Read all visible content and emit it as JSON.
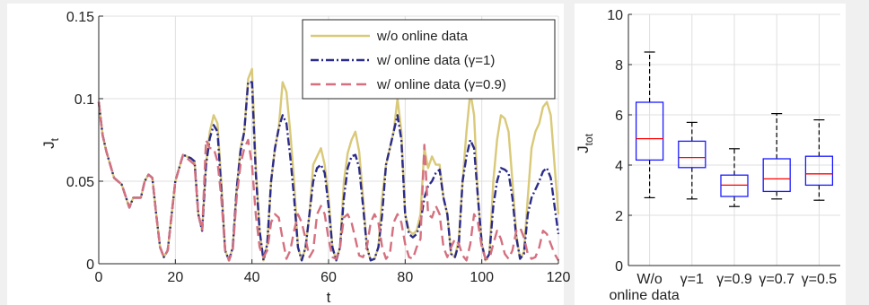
{
  "colors": {
    "background": "#f0f0f0",
    "panel": "#ffffff",
    "grid": "#dfdfdf",
    "axis": "#262626",
    "box": "#1a1aff",
    "median": "#ff0000"
  },
  "chart_data": [
    {
      "type": "line",
      "xlabel": "t",
      "ylabel": "J",
      "ylabel_sub": "t",
      "xlim": [
        0,
        120
      ],
      "ylim": [
        0,
        0.15
      ],
      "xticks": [
        0,
        20,
        40,
        60,
        80,
        100,
        120
      ],
      "yticks": [
        0,
        0.05,
        0.1,
        0.15
      ],
      "ytick_labels": [
        "0",
        "0.05",
        "0.1",
        "0.15"
      ],
      "grid": true,
      "legend_position": "top-right",
      "series": [
        {
          "name": "w/o online data",
          "color": "#d9c979",
          "dash": "solid",
          "x": [
            0,
            1,
            2,
            4,
            6,
            8,
            9,
            11,
            12,
            13,
            14,
            15,
            16,
            17,
            18,
            20,
            22,
            24,
            25,
            26,
            27,
            28,
            29,
            30,
            31,
            32,
            33,
            34,
            35,
            36,
            37,
            38,
            39,
            40,
            41,
            42,
            43,
            44,
            45,
            46,
            47,
            48,
            49,
            50,
            51,
            52,
            53,
            54,
            55,
            56,
            57,
            58,
            59,
            60,
            61,
            62,
            63,
            64,
            65,
            66,
            67,
            68,
            69,
            70,
            71,
            72,
            73,
            74,
            75,
            76,
            77,
            78,
            79,
            80,
            81,
            82,
            83,
            84,
            85,
            86,
            87,
            88,
            89,
            90,
            91,
            92,
            93,
            94,
            95,
            96,
            97,
            98,
            99,
            100,
            101,
            102,
            103,
            104,
            105,
            106,
            107,
            108,
            109,
            110,
            111,
            112,
            113,
            114,
            115,
            116,
            117,
            118,
            119,
            120
          ],
          "y": [
            0.098,
            0.078,
            0.068,
            0.052,
            0.048,
            0.034,
            0.04,
            0.04,
            0.05,
            0.054,
            0.052,
            0.03,
            0.01,
            0.004,
            0.008,
            0.05,
            0.066,
            0.064,
            0.062,
            0.03,
            0.02,
            0.06,
            0.08,
            0.09,
            0.085,
            0.05,
            0.008,
            0.002,
            0.01,
            0.045,
            0.07,
            0.08,
            0.112,
            0.118,
            0.06,
            0.02,
            0.002,
            0.012,
            0.05,
            0.07,
            0.082,
            0.11,
            0.104,
            0.08,
            0.05,
            0.01,
            0.002,
            0.01,
            0.03,
            0.06,
            0.065,
            0.07,
            0.06,
            0.04,
            0.01,
            0.002,
            0.01,
            0.05,
            0.067,
            0.075,
            0.08,
            0.068,
            0.04,
            0.01,
            0.002,
            0.003,
            0.01,
            0.04,
            0.06,
            0.07,
            0.08,
            0.1,
            0.08,
            0.03,
            0.02,
            0.018,
            0.02,
            0.03,
            0.07,
            0.058,
            0.065,
            0.06,
            0.06,
            0.04,
            0.03,
            0.006,
            0.004,
            0.015,
            0.05,
            0.08,
            0.104,
            0.09,
            0.04,
            0.012,
            0.002,
            0.006,
            0.05,
            0.075,
            0.09,
            0.088,
            0.08,
            0.05,
            0.018,
            0.003,
            0.007,
            0.04,
            0.07,
            0.08,
            0.085,
            0.095,
            0.098,
            0.09,
            0.06,
            0.03
          ]
        },
        {
          "name": "w/ online data (γ=1)",
          "color": "#2b2b8a",
          "dash": "dashdot",
          "x": [
            0,
            1,
            2,
            4,
            6,
            8,
            9,
            11,
            12,
            13,
            14,
            15,
            16,
            17,
            18,
            20,
            22,
            24,
            25,
            26,
            27,
            28,
            29,
            30,
            31,
            32,
            33,
            34,
            35,
            36,
            37,
            38,
            39,
            40,
            41,
            42,
            43,
            44,
            45,
            46,
            47,
            48,
            49,
            50,
            51,
            52,
            53,
            54,
            55,
            56,
            57,
            58,
            59,
            60,
            61,
            62,
            63,
            64,
            65,
            66,
            67,
            68,
            69,
            70,
            71,
            72,
            73,
            74,
            75,
            76,
            77,
            78,
            79,
            80,
            81,
            82,
            83,
            84,
            85,
            86,
            87,
            88,
            89,
            90,
            91,
            92,
            93,
            94,
            95,
            96,
            97,
            98,
            99,
            100,
            101,
            102,
            103,
            104,
            105,
            106,
            107,
            108,
            109,
            110,
            111,
            112,
            113,
            114,
            115,
            116,
            117,
            118,
            119,
            120
          ],
          "y": [
            0.098,
            0.078,
            0.068,
            0.052,
            0.048,
            0.034,
            0.04,
            0.04,
            0.05,
            0.054,
            0.052,
            0.03,
            0.01,
            0.004,
            0.008,
            0.05,
            0.066,
            0.064,
            0.062,
            0.03,
            0.02,
            0.06,
            0.076,
            0.084,
            0.08,
            0.045,
            0.008,
            0.002,
            0.01,
            0.045,
            0.068,
            0.08,
            0.11,
            0.11,
            0.055,
            0.02,
            0.002,
            0.012,
            0.05,
            0.07,
            0.082,
            0.09,
            0.085,
            0.065,
            0.04,
            0.01,
            0.002,
            0.01,
            0.03,
            0.05,
            0.058,
            0.06,
            0.055,
            0.035,
            0.01,
            0.002,
            0.01,
            0.04,
            0.058,
            0.065,
            0.066,
            0.058,
            0.035,
            0.01,
            0.002,
            0.003,
            0.01,
            0.03,
            0.06,
            0.07,
            0.08,
            0.09,
            0.075,
            0.03,
            0.018,
            0.016,
            0.018,
            0.025,
            0.04,
            0.047,
            0.05,
            0.055,
            0.057,
            0.04,
            0.03,
            0.006,
            0.004,
            0.012,
            0.05,
            0.065,
            0.075,
            0.07,
            0.04,
            0.012,
            0.002,
            0.006,
            0.035,
            0.05,
            0.058,
            0.057,
            0.055,
            0.04,
            0.016,
            0.003,
            0.006,
            0.03,
            0.04,
            0.045,
            0.05,
            0.056,
            0.058,
            0.052,
            0.035,
            0.018
          ]
        },
        {
          "name": "w/ online data (γ=0.9)",
          "color": "#d4707f",
          "dash": "dashed",
          "x": [
            0,
            1,
            2,
            4,
            6,
            8,
            9,
            11,
            12,
            13,
            14,
            15,
            16,
            17,
            18,
            20,
            22,
            24,
            25,
            26,
            27,
            28,
            29,
            30,
            31,
            32,
            33,
            34,
            35,
            36,
            37,
            38,
            39,
            40,
            41,
            42,
            43,
            44,
            45,
            46,
            47,
            48,
            49,
            50,
            51,
            52,
            53,
            54,
            55,
            56,
            57,
            58,
            59,
            60,
            61,
            62,
            63,
            64,
            65,
            66,
            67,
            68,
            69,
            70,
            71,
            72,
            73,
            74,
            75,
            76,
            77,
            78,
            79,
            80,
            81,
            82,
            83,
            84,
            85,
            86,
            87,
            88,
            89,
            90,
            91,
            92,
            93,
            94,
            95,
            96,
            97,
            98,
            99,
            100,
            101,
            102,
            103,
            104,
            105,
            106,
            107,
            108,
            109,
            110,
            111,
            112,
            113,
            114,
            115,
            116,
            117,
            118,
            119,
            120
          ],
          "y": [
            0.098,
            0.078,
            0.068,
            0.052,
            0.048,
            0.034,
            0.04,
            0.04,
            0.05,
            0.054,
            0.052,
            0.03,
            0.01,
            0.004,
            0.008,
            0.05,
            0.066,
            0.062,
            0.06,
            0.03,
            0.02,
            0.075,
            0.07,
            0.07,
            0.062,
            0.04,
            0.008,
            0.002,
            0.008,
            0.04,
            0.06,
            0.07,
            0.075,
            0.06,
            0.03,
            0.01,
            0.004,
            0.008,
            0.025,
            0.03,
            0.028,
            0.015,
            0.003,
            0.008,
            0.02,
            0.03,
            0.025,
            0.015,
            0.004,
            0.008,
            0.03,
            0.035,
            0.03,
            0.015,
            0.004,
            0.003,
            0.01,
            0.028,
            0.03,
            0.025,
            0.015,
            0.005,
            0.004,
            0.01,
            0.025,
            0.03,
            0.025,
            0.01,
            0.003,
            0.006,
            0.025,
            0.03,
            0.025,
            0.012,
            0.004,
            0.003,
            0.01,
            0.015,
            0.072,
            0.03,
            0.028,
            0.035,
            0.03,
            0.01,
            0.004,
            0.01,
            0.015,
            0.012,
            0.005,
            0.002,
            0.012,
            0.03,
            0.025,
            0.01,
            0.003,
            0.003,
            0.012,
            0.02,
            0.015,
            0.006,
            0.003,
            0.008,
            0.02,
            0.022,
            0.016,
            0.006,
            0.003,
            0.004,
            0.01,
            0.02,
            0.018,
            0.012,
            0.006,
            0.002
          ]
        }
      ]
    },
    {
      "type": "box",
      "ylabel": "J",
      "ylabel_sub": "tot",
      "ylim": [
        0,
        10
      ],
      "yticks": [
        0,
        2,
        4,
        6,
        8,
        10
      ],
      "grid": true,
      "categories": [
        "W/o\nonline data",
        "γ=1",
        "γ=0.9",
        "γ=0.7",
        "γ=0.5"
      ],
      "boxes": [
        {
          "whisker_low": 2.7,
          "q1": 4.2,
          "median": 5.05,
          "q3": 6.5,
          "whisker_high": 8.5
        },
        {
          "whisker_low": 2.65,
          "q1": 3.9,
          "median": 4.3,
          "q3": 4.95,
          "whisker_high": 5.7
        },
        {
          "whisker_low": 2.35,
          "q1": 2.75,
          "median": 3.2,
          "q3": 3.6,
          "whisker_high": 4.65
        },
        {
          "whisker_low": 2.65,
          "q1": 2.95,
          "median": 3.45,
          "q3": 4.25,
          "whisker_high": 6.05
        },
        {
          "whisker_low": 2.6,
          "q1": 3.2,
          "median": 3.65,
          "q3": 4.35,
          "whisker_high": 5.8
        }
      ]
    }
  ]
}
